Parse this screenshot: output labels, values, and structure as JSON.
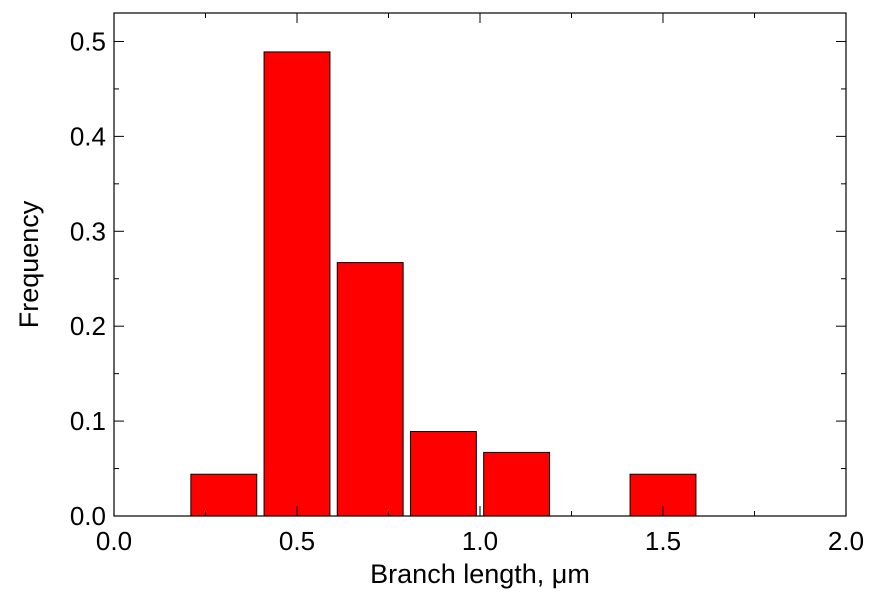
{
  "chart_data": {
    "type": "bar",
    "title": "",
    "xlabel": "Branch length, μm",
    "ylabel": "Frequency",
    "xlim": [
      0.0,
      2.0
    ],
    "ylim": [
      0.0,
      0.53
    ],
    "x_ticks": [
      0.0,
      0.5,
      1.0,
      1.5,
      2.0
    ],
    "x_tick_labels": [
      "0.0",
      "0.5",
      "1.0",
      "1.5",
      "2.0"
    ],
    "y_ticks": [
      0.0,
      0.1,
      0.2,
      0.3,
      0.4,
      0.5
    ],
    "y_tick_labels": [
      "0.0",
      "0.1",
      "0.2",
      "0.3",
      "0.4",
      "0.5"
    ],
    "bar_width": 0.18,
    "x": [
      0.3,
      0.5,
      0.7,
      0.9,
      1.1,
      1.5
    ],
    "values": [
      0.044,
      0.489,
      0.267,
      0.089,
      0.067,
      0.044
    ],
    "grid": false,
    "bar_color": "#ff0000",
    "edge_color": "#000000"
  }
}
